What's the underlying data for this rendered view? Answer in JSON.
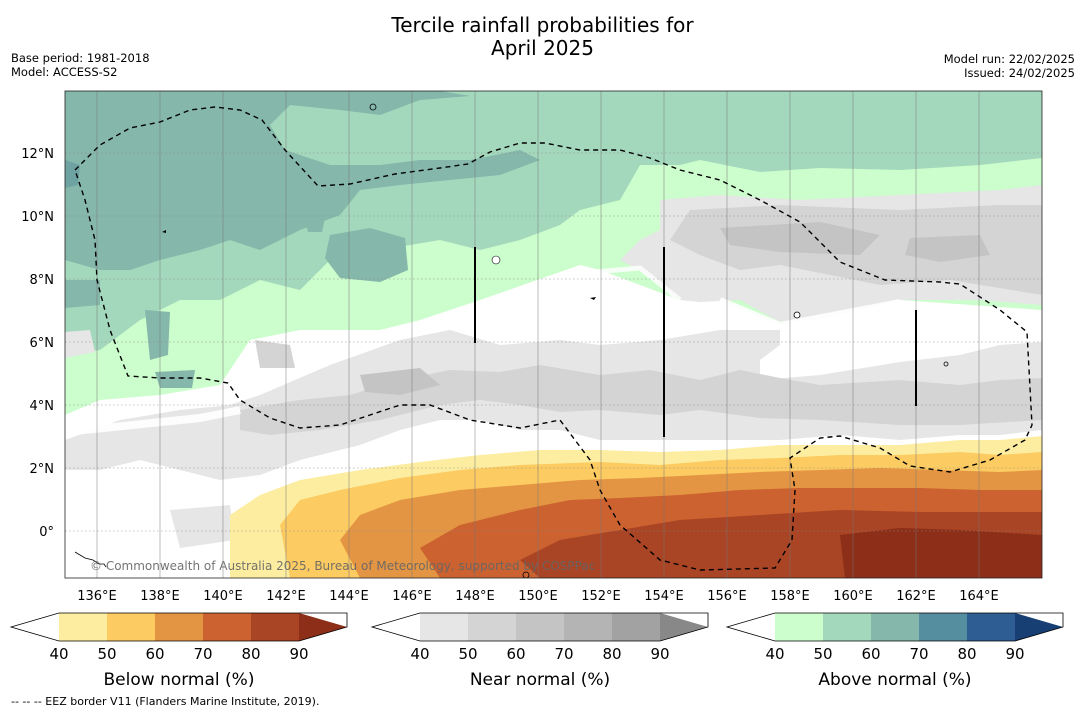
{
  "title_line1": "Tercile rainfall probabilities for",
  "title_line2": "April 2025",
  "base_period": "Base period: 1981-2018",
  "model": "Model: ACCESS-S2",
  "model_run": "Model run: 22/02/2025",
  "issued": "Issued: 24/02/2025",
  "copyright": "© Commonwealth of Australia 2025, Bureau of Meteorology, supported by COSPPac",
  "footnote": "-- -- -- EEZ border V11 (Flanders Marine Institute, 2019).",
  "map": {
    "lon_range": [
      135,
      166
    ],
    "lat_range": [
      -1.5,
      14
    ],
    "lon_ticks": [
      "136°E",
      "138°E",
      "140°E",
      "142°E",
      "144°E",
      "146°E",
      "148°E",
      "150°E",
      "152°E",
      "154°E",
      "156°E",
      "158°E",
      "160°E",
      "162°E",
      "164°E"
    ],
    "lat_ticks": [
      "12°N",
      "10°N",
      "8°N",
      "6°N",
      "4°N",
      "2°N",
      "0°"
    ],
    "gridlines": true
  },
  "colorbars": [
    {
      "title": "Below normal (%)",
      "ticks": [
        "40",
        "50",
        "60",
        "70",
        "80",
        "90"
      ],
      "colors": [
        "#ffffff",
        "#fdeda0",
        "#fccb61",
        "#e49543",
        "#cb6230",
        "#a94424",
        "#8c2e18"
      ]
    },
    {
      "title": "Near normal (%)",
      "ticks": [
        "40",
        "50",
        "60",
        "70",
        "80",
        "90"
      ],
      "colors": [
        "#ffffff",
        "#e6e6e6",
        "#d4d4d4",
        "#c4c4c4",
        "#b4b4b4",
        "#a2a2a2",
        "#888888"
      ]
    },
    {
      "title": "Above normal (%)",
      "ticks": [
        "40",
        "50",
        "60",
        "70",
        "80",
        "90"
      ],
      "colors": [
        "#ffffff",
        "#ccfdcc",
        "#a3d8bc",
        "#85b7aa",
        "#558e9e",
        "#2e5d94",
        "#173f73"
      ]
    }
  ]
}
